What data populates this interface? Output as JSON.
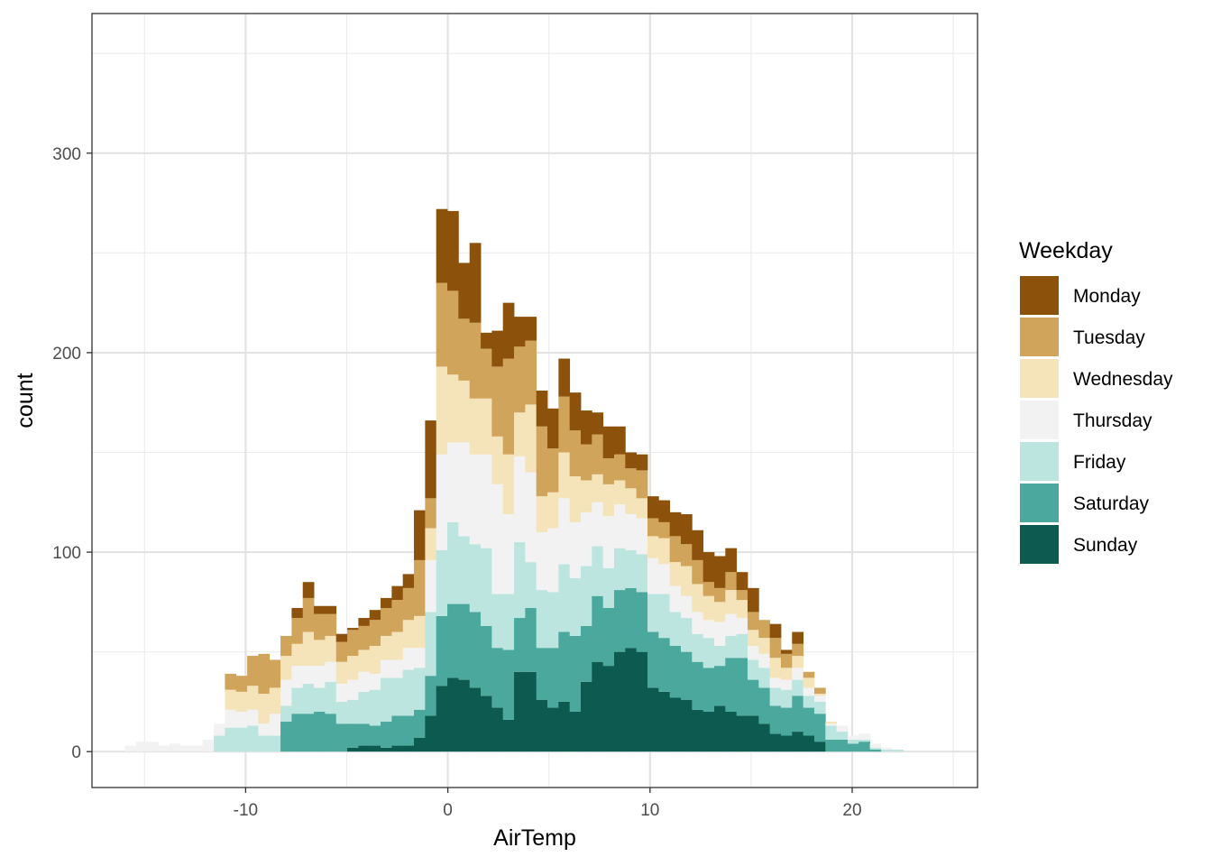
{
  "chart_data": {
    "type": "bar",
    "stacked": true,
    "xlabel": "AirTemp",
    "ylabel": "count",
    "xlim": [
      -17.6,
      26.2
    ],
    "ylim": [
      -18,
      370
    ],
    "bin_width": 0.55,
    "x_ticks": [
      -10,
      0,
      10,
      20
    ],
    "x_tick_labels": [
      "-10",
      "0",
      "10",
      "20"
    ],
    "y_ticks": [
      0,
      100,
      200,
      300
    ],
    "y_tick_labels": [
      "0",
      "100",
      "200",
      "300"
    ],
    "grid": true,
    "legend": {
      "title": "Weekday",
      "position": "right",
      "items": [
        "Monday",
        "Tuesday",
        "Wednesday",
        "Thursday",
        "Friday",
        "Saturday",
        "Sunday"
      ]
    },
    "colors": {
      "Monday": "#8c510a",
      "Tuesday": "#d0a45a",
      "Wednesday": "#f5e3b9",
      "Thursday": "#f2f2f2",
      "Friday": "#bde5e0",
      "Saturday": "#4aa89d",
      "Sunday": "#0d5a50"
    },
    "x": [
      -15.7,
      -15.15,
      -14.6,
      -14.05,
      -13.5,
      -12.95,
      -12.4,
      -11.85,
      -11.3,
      -10.75,
      -10.2,
      -9.65,
      -9.1,
      -8.55,
      -8.0,
      -7.45,
      -6.9,
      -6.35,
      -5.8,
      -5.25,
      -4.7,
      -4.15,
      -3.6,
      -3.05,
      -2.5,
      -1.95,
      -1.4,
      -0.85,
      -0.3,
      0.25,
      0.8,
      1.35,
      1.9,
      2.45,
      3.0,
      3.55,
      4.1,
      4.65,
      5.2,
      5.75,
      6.3,
      6.85,
      7.4,
      7.95,
      8.5,
      9.05,
      9.6,
      10.15,
      10.7,
      11.25,
      11.8,
      12.35,
      12.9,
      13.45,
      14.0,
      14.55,
      15.1,
      15.65,
      16.2,
      16.75,
      17.3,
      17.85,
      18.4,
      18.95,
      19.5,
      20.05,
      20.6,
      21.15,
      21.7,
      22.25,
      22.8,
      23.35,
      23.9
    ],
    "series": [
      {
        "name": "Monday",
        "values": [
          0,
          0,
          0,
          0,
          0,
          0,
          0,
          0,
          0,
          0,
          0,
          0,
          0,
          0,
          0,
          5,
          8,
          4,
          4,
          4,
          1,
          4,
          5,
          5,
          7,
          7,
          25,
          39,
          37,
          40,
          28,
          40,
          8,
          18,
          28,
          15,
          12,
          18,
          20,
          19,
          19,
          17,
          11,
          16,
          14,
          8,
          8,
          11,
          11,
          12,
          15,
          15,
          15,
          16,
          12,
          9,
          12,
          0,
          7,
          2,
          6,
          0,
          0,
          0,
          0,
          0,
          0,
          0,
          0,
          0,
          0,
          0,
          0
        ]
      },
      {
        "name": "Tuesday",
        "values": [
          0,
          0,
          0,
          0,
          0,
          0,
          0,
          0,
          0,
          8,
          8,
          15,
          20,
          14,
          10,
          13,
          17,
          13,
          11,
          10,
          13,
          12,
          13,
          14,
          16,
          16,
          28,
          15,
          42,
          42,
          31,
          38,
          25,
          35,
          48,
          33,
          32,
          35,
          22,
          28,
          23,
          18,
          20,
          13,
          13,
          10,
          14,
          9,
          8,
          13,
          11,
          12,
          7,
          7,
          9,
          5,
          9,
          9,
          10,
          7,
          6,
          3,
          3,
          0,
          0,
          0,
          0,
          0,
          0,
          0,
          0,
          0,
          0
        ]
      },
      {
        "name": "Wednesday",
        "values": [
          0,
          0,
          0,
          0,
          0,
          0,
          0,
          0,
          0,
          10,
          10,
          12,
          15,
          13,
          12,
          11,
          17,
          13,
          13,
          11,
          12,
          11,
          14,
          12,
          14,
          14,
          16,
          16,
          44,
          34,
          31,
          28,
          28,
          24,
          30,
          22,
          34,
          18,
          18,
          23,
          23,
          16,
          14,
          16,
          12,
          13,
          10,
          11,
          13,
          12,
          15,
          14,
          12,
          10,
          12,
          9,
          8,
          8,
          10,
          6,
          6,
          5,
          1,
          1,
          0,
          0,
          0,
          0,
          0,
          0,
          0,
          0,
          0
        ]
      },
      {
        "name": "Thursday",
        "values": [
          3,
          5,
          5,
          3,
          4,
          3,
          3,
          6,
          6,
          9,
          8,
          8,
          6,
          11,
          13,
          11,
          9,
          11,
          10,
          9,
          10,
          10,
          8,
          9,
          9,
          11,
          10,
          26,
          48,
          40,
          47,
          45,
          47,
          55,
          40,
          43,
          45,
          29,
          32,
          33,
          28,
          27,
          22,
          26,
          22,
          18,
          18,
          18,
          15,
          13,
          11,
          11,
          9,
          12,
          11,
          8,
          7,
          7,
          5,
          5,
          6,
          4,
          3,
          1,
          3,
          2,
          3,
          2,
          1,
          0,
          0,
          0,
          0
        ]
      },
      {
        "name": "Friday",
        "values": [
          0,
          0,
          0,
          0,
          0,
          0,
          0,
          0,
          8,
          12,
          12,
          13,
          8,
          8,
          8,
          13,
          15,
          12,
          16,
          11,
          12,
          16,
          18,
          22,
          19,
          23,
          21,
          32,
          33,
          41,
          34,
          34,
          39,
          27,
          28,
          38,
          23,
          29,
          28,
          34,
          29,
          30,
          25,
          20,
          21,
          19,
          19,
          19,
          22,
          17,
          17,
          14,
          15,
          10,
          11,
          12,
          10,
          10,
          9,
          9,
          8,
          6,
          6,
          7,
          4,
          2,
          1,
          1,
          1,
          1,
          0,
          0,
          0
        ]
      },
      {
        "name": "Saturday",
        "values": [
          0,
          0,
          0,
          0,
          0,
          0,
          0,
          0,
          0,
          0,
          0,
          0,
          0,
          0,
          15,
          19,
          19,
          20,
          19,
          14,
          12,
          11,
          10,
          13,
          15,
          15,
          14,
          20,
          35,
          37,
          38,
          38,
          35,
          30,
          35,
          27,
          32,
          26,
          30,
          35,
          38,
          28,
          33,
          29,
          31,
          30,
          30,
          28,
          27,
          26,
          24,
          24,
          22,
          20,
          27,
          29,
          18,
          18,
          14,
          14,
          18,
          14,
          14,
          6,
          6,
          4,
          5,
          1,
          0,
          0,
          0,
          0,
          0
        ]
      },
      {
        "name": "Sunday",
        "values": [
          0,
          0,
          0,
          0,
          0,
          0,
          0,
          0,
          0,
          0,
          0,
          0,
          0,
          0,
          0,
          0,
          0,
          0,
          0,
          0,
          2,
          3,
          3,
          2,
          3,
          3,
          7,
          18,
          33,
          37,
          36,
          32,
          28,
          22,
          16,
          40,
          40,
          26,
          22,
          25,
          20,
          35,
          45,
          43,
          50,
          52,
          50,
          32,
          30,
          27,
          26,
          21,
          20,
          23,
          20,
          18,
          18,
          14,
          9,
          8,
          10,
          8,
          5,
          0,
          0,
          0,
          0,
          0,
          0,
          0,
          0,
          0,
          0
        ]
      }
    ]
  }
}
